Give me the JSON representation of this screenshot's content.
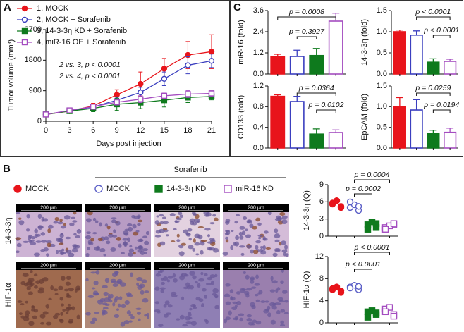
{
  "panels": [
    "A",
    "B",
    "C"
  ],
  "histology": {
    "legend": [
      "MOCK",
      "MOCK",
      "14-3-3η KD",
      "miR-16 KD"
    ],
    "legend_colors": [
      "#e8141b",
      "#5b5fc7",
      "#0e7a1d",
      "#a44cc0"
    ],
    "legend_markers": [
      "circle",
      "circle",
      "square",
      "square"
    ],
    "legend_filled": [
      true,
      false,
      true,
      false
    ],
    "group_label": "Sorafenib",
    "rows": [
      "14-3-3η",
      "HIF-1α"
    ],
    "scale_bar": "200 μm"
  },
  "chart_data": [
    {
      "type": "line",
      "x_label": "Days post injection",
      "y_label": "Tumor volume (mm³)",
      "x": [
        0,
        3,
        6,
        9,
        12,
        15,
        18,
        21
      ],
      "xlim": [
        0,
        21
      ],
      "xticks": [
        0,
        3,
        6,
        9,
        12,
        15,
        18,
        21
      ],
      "ylim": [
        0,
        2700
      ],
      "yticks": [
        0,
        900,
        1800,
        2700
      ],
      "series": [
        {
          "name": "1, MOCK",
          "color": "#e8141b",
          "marker": "circle",
          "filled": true,
          "values": [
            200,
            300,
            450,
            780,
            1100,
            1550,
            1950,
            2050
          ],
          "errors": [
            30,
            50,
            80,
            150,
            350,
            300,
            400,
            500
          ]
        },
        {
          "name": "2, MOCK + Sorafenib",
          "color": "#3b3fbf",
          "marker": "circle",
          "filled": false,
          "values": [
            200,
            310,
            420,
            620,
            850,
            1250,
            1650,
            1780
          ],
          "errors": [
            30,
            40,
            80,
            100,
            150,
            200,
            250,
            200
          ]
        },
        {
          "name": "3, 14-3-3η KD + Sorafenib",
          "color": "#0e7a1d",
          "marker": "square",
          "filled": true,
          "values": [
            200,
            300,
            380,
            500,
            550,
            620,
            700,
            730
          ],
          "errors": [
            30,
            50,
            100,
            180,
            180,
            200,
            150,
            100
          ]
        },
        {
          "name": "4, miR-16 OE + Sorafenib",
          "color": "#a44cc0",
          "marker": "square",
          "filled": false,
          "values": [
            200,
            320,
            430,
            560,
            650,
            750,
            800,
            820
          ],
          "errors": [
            30,
            50,
            80,
            80,
            100,
            80,
            100,
            80
          ]
        }
      ],
      "annotations": [
        "2 vs. 3, p < 0.0001",
        "2 vs. 4, p < 0.0001"
      ]
    },
    {
      "type": "bar",
      "y_label": "miR-16 (fold)",
      "categories": [
        null,
        null,
        null,
        null
      ],
      "values": [
        1.0,
        1.0,
        1.05,
        3.0
      ],
      "errors": [
        0.12,
        0.35,
        0.4,
        0.45
      ],
      "colors": [
        "#e8141b",
        "#3b3fbf",
        "#0e7a1d",
        "#a44cc0"
      ],
      "filled": [
        true,
        false,
        true,
        false
      ],
      "ylim": [
        0,
        3.6
      ],
      "yticks": [
        {
          "value": 0,
          "label": "0.0"
        },
        1.2,
        2.4,
        3.6
      ],
      "annotations": [
        "p = 0.0008",
        "p = 0.3927"
      ]
    },
    {
      "type": "bar",
      "y_label": "14-3-3η (fold)",
      "categories": [
        null,
        null,
        null,
        null
      ],
      "values": [
        1.0,
        0.92,
        0.28,
        0.3
      ],
      "errors": [
        0.04,
        0.1,
        0.08,
        0.05
      ],
      "colors": [
        "#e8141b",
        "#3b3fbf",
        "#0e7a1d",
        "#a44cc0"
      ],
      "filled": [
        true,
        false,
        true,
        false
      ],
      "ylim": [
        0,
        1.5
      ],
      "yticks": [
        {
          "value": 0,
          "label": "0.0"
        },
        0.5,
        {
          "value": 1,
          "label": "1.0"
        },
        1.5
      ],
      "annotations": [
        "p < 0.0001",
        "p < 0.0001"
      ]
    },
    {
      "type": "bar",
      "y_label": "CD133 (fold)",
      "categories": [
        null,
        null,
        null,
        null
      ],
      "values": [
        1.0,
        0.9,
        0.27,
        0.3
      ],
      "errors": [
        0.03,
        0.1,
        0.1,
        0.05
      ],
      "colors": [
        "#e8141b",
        "#3b3fbf",
        "#0e7a1d",
        "#a44cc0"
      ],
      "filled": [
        true,
        false,
        true,
        false
      ],
      "ylim": [
        0,
        1.2
      ],
      "yticks": [
        {
          "value": 0,
          "label": "0.0"
        },
        0.4,
        0.8,
        1.2
      ],
      "annotations": [
        "p = 0.0364",
        "p = 0.0102"
      ]
    },
    {
      "type": "bar",
      "y_label": "EpCAM (fold)",
      "categories": [
        null,
        null,
        null,
        null
      ],
      "values": [
        1.0,
        0.92,
        0.35,
        0.38
      ],
      "errors": [
        0.22,
        0.25,
        0.08,
        0.1
      ],
      "colors": [
        "#e8141b",
        "#3b3fbf",
        "#0e7a1d",
        "#a44cc0"
      ],
      "filled": [
        true,
        false,
        true,
        false
      ],
      "ylim": [
        0,
        1.5
      ],
      "yticks": [
        {
          "value": 0,
          "label": "0.0"
        },
        0.5,
        {
          "value": 1,
          "label": "1.0"
        },
        1.5
      ],
      "annotations": [
        "p = 0.0259",
        "p = 0.0194"
      ]
    },
    {
      "type": "dot",
      "y_label": "14-3-3η (Q)",
      "categories": [
        null,
        null,
        null,
        null
      ],
      "values": [
        [
          5.6,
          5.2,
          6.2,
          5.8,
          5.0
        ],
        [
          5.0,
          4.5,
          5.5,
          6.0,
          5.2
        ],
        [
          2.0,
          1.5,
          2.5,
          1.2,
          2.2
        ],
        [
          1.5,
          2.0,
          1.8,
          1.2,
          2.2
        ]
      ],
      "colors": [
        "#e8141b",
        "#5b5fc7",
        "#0e7a1d",
        "#a44cc0"
      ],
      "markers": [
        "circle",
        "circle",
        "square",
        "square"
      ],
      "filled": [
        true,
        false,
        true,
        false
      ],
      "ylim": [
        0,
        9
      ],
      "yticks": [
        0,
        3,
        6,
        9
      ],
      "annotations": [
        "p = 0.0004",
        "p = 0.0002"
      ]
    },
    {
      "type": "dot",
      "y_label": "HIF-1α (Q)",
      "categories": [
        null,
        null,
        null,
        null
      ],
      "values": [
        [
          6.0,
          5.5,
          6.5,
          6.2,
          5.8
        ],
        [
          6.5,
          6.0,
          6.8,
          6.3,
          6.6
        ],
        [
          2.0,
          1.5,
          2.2,
          1.0,
          1.8
        ],
        [
          2.5,
          1.5,
          2.8,
          2.0,
          1.2
        ]
      ],
      "colors": [
        "#e8141b",
        "#5b5fc7",
        "#0e7a1d",
        "#a44cc0"
      ],
      "markers": [
        "circle",
        "circle",
        "square",
        "square"
      ],
      "filled": [
        true,
        false,
        true,
        false
      ],
      "ylim": [
        0,
        12
      ],
      "yticks": [
        0,
        4,
        8,
        12
      ],
      "annotations": [
        "p < 0.0001",
        "p < 0.0001"
      ]
    }
  ]
}
